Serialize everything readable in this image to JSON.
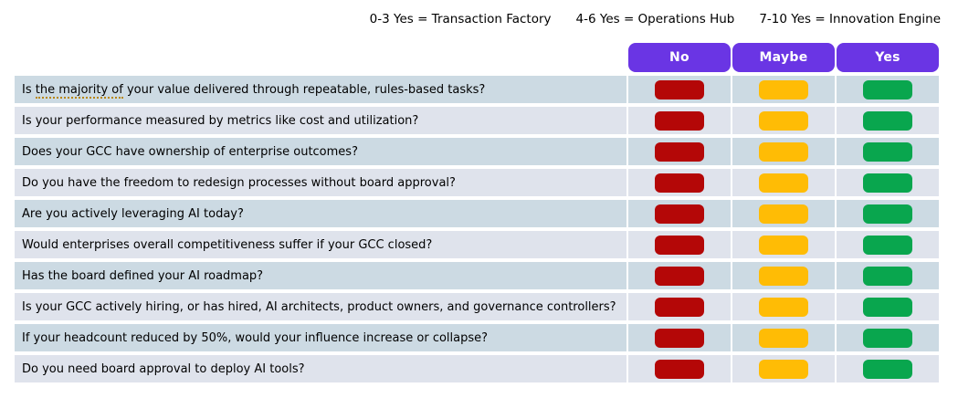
{
  "legend": {
    "items": [
      "0-3 Yes = Transaction Factory",
      "4-6 Yes = Operations Hub",
      "7-10 Yes = Innovation Engine"
    ]
  },
  "columns": [
    "No",
    "Maybe",
    "Yes"
  ],
  "questions": [
    {
      "prefix": "Is ",
      "underlined": "the majority of",
      "suffix": " your value delivered through repeatable, rules-based tasks?"
    },
    {
      "text": "Is your performance measured by metrics like cost and utilization?"
    },
    {
      "text": "Does your GCC have ownership of enterprise outcomes?"
    },
    {
      "text": "Do you have the freedom to redesign processes without board approval?"
    },
    {
      "text": "Are you actively leveraging AI today?"
    },
    {
      "text": "Would enterprises overall competitiveness suffer if your GCC closed?"
    },
    {
      "text": "Has the board defined your AI roadmap?"
    },
    {
      "text": "Is your GCC actively hiring, or has hired, AI architects, product owners, and governance controllers?"
    },
    {
      "text": "If your headcount reduced by 50%, would your influence increase or collapse?"
    },
    {
      "text": "Do you need board approval to deploy AI tools?"
    }
  ],
  "colors": {
    "header_purple": "#6a35e4",
    "no_red": "#b40707",
    "maybe_orange": "#ffbc05",
    "yes_green": "#09a64e",
    "row_dark": "#ccdae3",
    "row_light": "#dfe3ec",
    "grammar_underline": "#b8860b"
  }
}
